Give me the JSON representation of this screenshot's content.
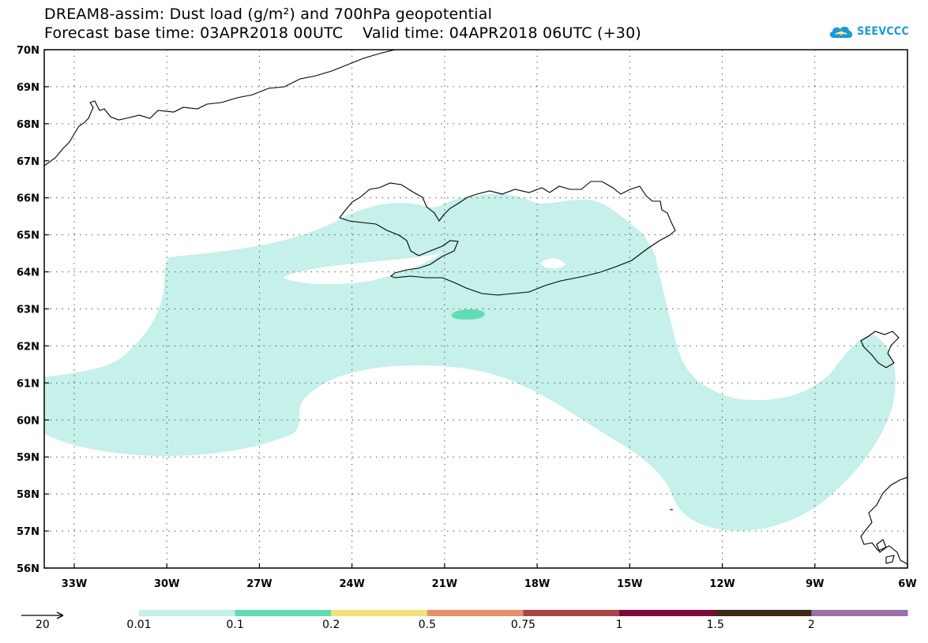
{
  "header": {
    "title_line1": "DREAM8-assim: Dust load (g/m²) and 700hPa geopotential",
    "title_line2": "Forecast base time: 03APR2018 00UTC    Valid time: 04APR2018 06UTC (+30)",
    "logo_text": "SEEVCCC",
    "logo_icon": "cloud-icon"
  },
  "map": {
    "lat_labels": [
      "70N",
      "69N",
      "68N",
      "67N",
      "66N",
      "65N",
      "64N",
      "63N",
      "62N",
      "61N",
      "60N",
      "59N",
      "58N",
      "57N",
      "56N"
    ],
    "lon_labels": [
      "33W",
      "30W",
      "27W",
      "24W",
      "21W",
      "18W",
      "15W",
      "12W",
      "9W",
      "6W"
    ],
    "colors": {
      "coast": "#000000",
      "frame": "#000000",
      "grid": "#555555"
    }
  },
  "legend": {
    "bins": [
      {
        "color": "#c6f0ea"
      },
      {
        "color": "#5fdcb4"
      },
      {
        "color": "#f1e27a"
      },
      {
        "color": "#e88f6e"
      },
      {
        "color": "#a9464a"
      },
      {
        "color": "#7d0a3a"
      },
      {
        "color": "#3c2a18"
      },
      {
        "color": "#9a72a6"
      }
    ],
    "labels": [
      "0.01",
      "0.1",
      "0.2",
      "0.5",
      "0.75",
      "1",
      "1.5",
      "2"
    ],
    "vector_label": "20"
  }
}
